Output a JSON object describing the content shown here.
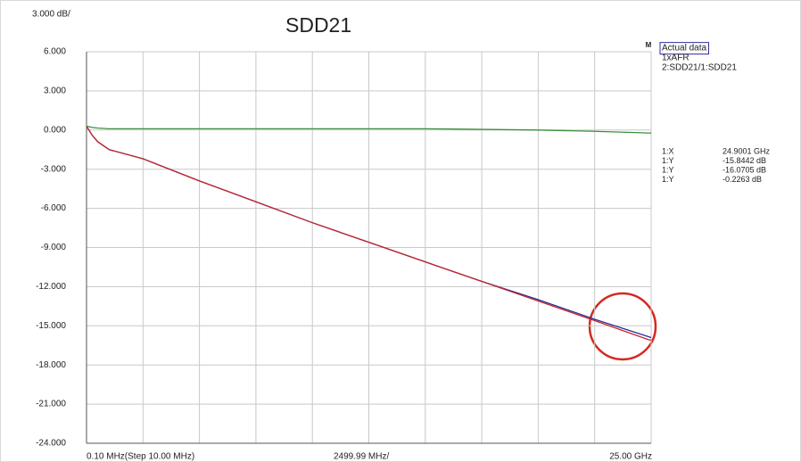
{
  "chart_data": {
    "type": "line",
    "title": "SDD21",
    "scale_label": "3.000 dB/",
    "x_start_label": "0.10 MHz(Step 10.00 MHz)",
    "x_scale_label": "2499.99 MHz/",
    "x_stop_label": "25.00 GHz",
    "marker_symbol": "M",
    "xlim": [
      0.0001,
      25
    ],
    "x_divisions": 10,
    "ylim": [
      -24,
      6
    ],
    "yticks": [
      {
        "value": 6,
        "label": "6.000"
      },
      {
        "value": 3,
        "label": "3.000"
      },
      {
        "value": 0,
        "label": "0.000"
      },
      {
        "value": -3,
        "label": "-3.000"
      },
      {
        "value": -6,
        "label": "-6.000"
      },
      {
        "value": -9,
        "label": "-9.000"
      },
      {
        "value": -12,
        "label": "-12.000"
      },
      {
        "value": -15,
        "label": "-15.000"
      },
      {
        "value": -18,
        "label": "-18.000"
      },
      {
        "value": -21,
        "label": "-21.000"
      },
      {
        "value": -24,
        "label": "-24.000"
      }
    ],
    "grid": true,
    "x": [
      0.0001,
      0.25,
      0.5,
      1,
      2.5,
      5,
      7.5,
      10,
      12.5,
      15,
      17.5,
      20,
      22.5,
      24.9001,
      25
    ],
    "series": [
      {
        "name": "Actual data",
        "color": "#2c2c9c",
        "values": [
          0.3,
          -0.4,
          -0.9,
          -1.5,
          -2.2,
          -3.9,
          -5.5,
          -7.1,
          -8.6,
          -10.1,
          -11.6,
          -13.0,
          -14.5,
          -15.8442,
          -15.9
        ]
      },
      {
        "name": "1xAFR",
        "color": "#c4262a",
        "values": [
          0.3,
          -0.4,
          -0.9,
          -1.5,
          -2.2,
          -3.9,
          -5.5,
          -7.1,
          -8.6,
          -10.1,
          -11.6,
          -13.1,
          -14.6,
          -16.0705,
          -16.1
        ]
      },
      {
        "name": "2:SDD21/1:SDD21",
        "color": "#3b8f3b",
        "values": [
          0.3,
          0.2,
          0.15,
          0.1,
          0.1,
          0.1,
          0.1,
          0.1,
          0.1,
          0.1,
          0.05,
          0.0,
          -0.1,
          -0.2263,
          -0.23
        ]
      }
    ],
    "marker_readout": [
      {
        "label": "1:X",
        "value": "24.9001 GHz"
      },
      {
        "label": "1:Y",
        "value": "-15.8442 dB"
      },
      {
        "label": "1:Y",
        "value": "-16.0705 dB"
      },
      {
        "label": "1:Y",
        "value": "-0.2263 dB"
      }
    ]
  }
}
